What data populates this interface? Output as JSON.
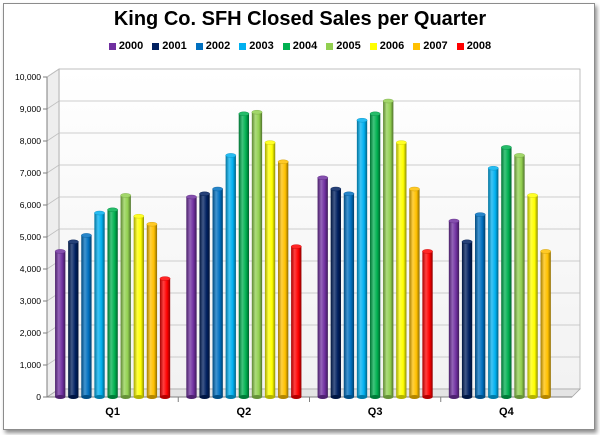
{
  "chart_data": {
    "type": "bar",
    "title": "King Co. SFH Closed Sales per Quarter",
    "categories": [
      "Q1",
      "Q2",
      "Q3",
      "Q4"
    ],
    "series": [
      {
        "name": "2000",
        "color": "#7030a0",
        "values": [
          4550,
          6250,
          6850,
          5500
        ]
      },
      {
        "name": "2001",
        "color": "#002060",
        "values": [
          4850,
          6350,
          6500,
          4850
        ]
      },
      {
        "name": "2002",
        "color": "#0070c0",
        "values": [
          5050,
          6500,
          6350,
          5700
        ]
      },
      {
        "name": "2003",
        "color": "#00b0f0",
        "values": [
          5750,
          7550,
          8650,
          7150
        ]
      },
      {
        "name": "2004",
        "color": "#00b050",
        "values": [
          5850,
          8850,
          8850,
          7800
        ]
      },
      {
        "name": "2005",
        "color": "#92d050",
        "values": [
          6300,
          8900,
          9250,
          7550
        ]
      },
      {
        "name": "2006",
        "color": "#ffff00",
        "values": [
          5650,
          7950,
          7950,
          6300
        ]
      },
      {
        "name": "2007",
        "color": "#ffc000",
        "values": [
          5400,
          7350,
          6500,
          4550
        ]
      },
      {
        "name": "2008",
        "color": "#ff0000",
        "values": [
          3700,
          4700,
          4550,
          null
        ]
      }
    ],
    "ylim": [
      0,
      10000
    ],
    "yticks": [
      "0",
      "1,000",
      "2,000",
      "3,000",
      "4,000",
      "5,000",
      "6,000",
      "7,000",
      "8,000",
      "9,000",
      "10,000"
    ],
    "grid": true,
    "legend_position": "top"
  }
}
